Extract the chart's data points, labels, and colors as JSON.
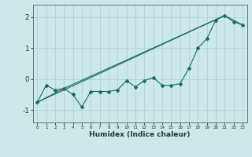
{
  "xlabel": "Humidex (Indice chaleur)",
  "ylabel": "",
  "background_color": "#cce8e8",
  "line_color": "#1a6b6b",
  "grid_color": "#aed4d4",
  "xlim": [
    -0.5,
    23.5
  ],
  "ylim": [
    -1.4,
    2.4
  ],
  "xticks": [
    0,
    1,
    2,
    3,
    4,
    5,
    6,
    7,
    8,
    9,
    10,
    11,
    12,
    13,
    14,
    15,
    16,
    17,
    18,
    19,
    20,
    21,
    22,
    23
  ],
  "yticks": [
    -1,
    0,
    1,
    2
  ],
  "line1_x": [
    0,
    1,
    2,
    3,
    4,
    5,
    6,
    7,
    8,
    9,
    10,
    11,
    12,
    13,
    14,
    15,
    16,
    17,
    18,
    19,
    20,
    21,
    22,
    23
  ],
  "line1_y": [
    -0.75,
    -0.2,
    -0.35,
    -0.3,
    -0.5,
    -0.9,
    -0.4,
    -0.4,
    -0.4,
    -0.35,
    -0.05,
    -0.25,
    -0.05,
    0.05,
    -0.2,
    -0.2,
    -0.15,
    0.35,
    1.0,
    1.3,
    1.9,
    2.05,
    1.85,
    1.75
  ],
  "line2_x": [
    0,
    21
  ],
  "line2_y": [
    -0.75,
    2.05
  ],
  "line3_x": [
    0,
    3,
    21,
    23
  ],
  "line3_y": [
    -0.75,
    -0.3,
    2.05,
    1.75
  ]
}
